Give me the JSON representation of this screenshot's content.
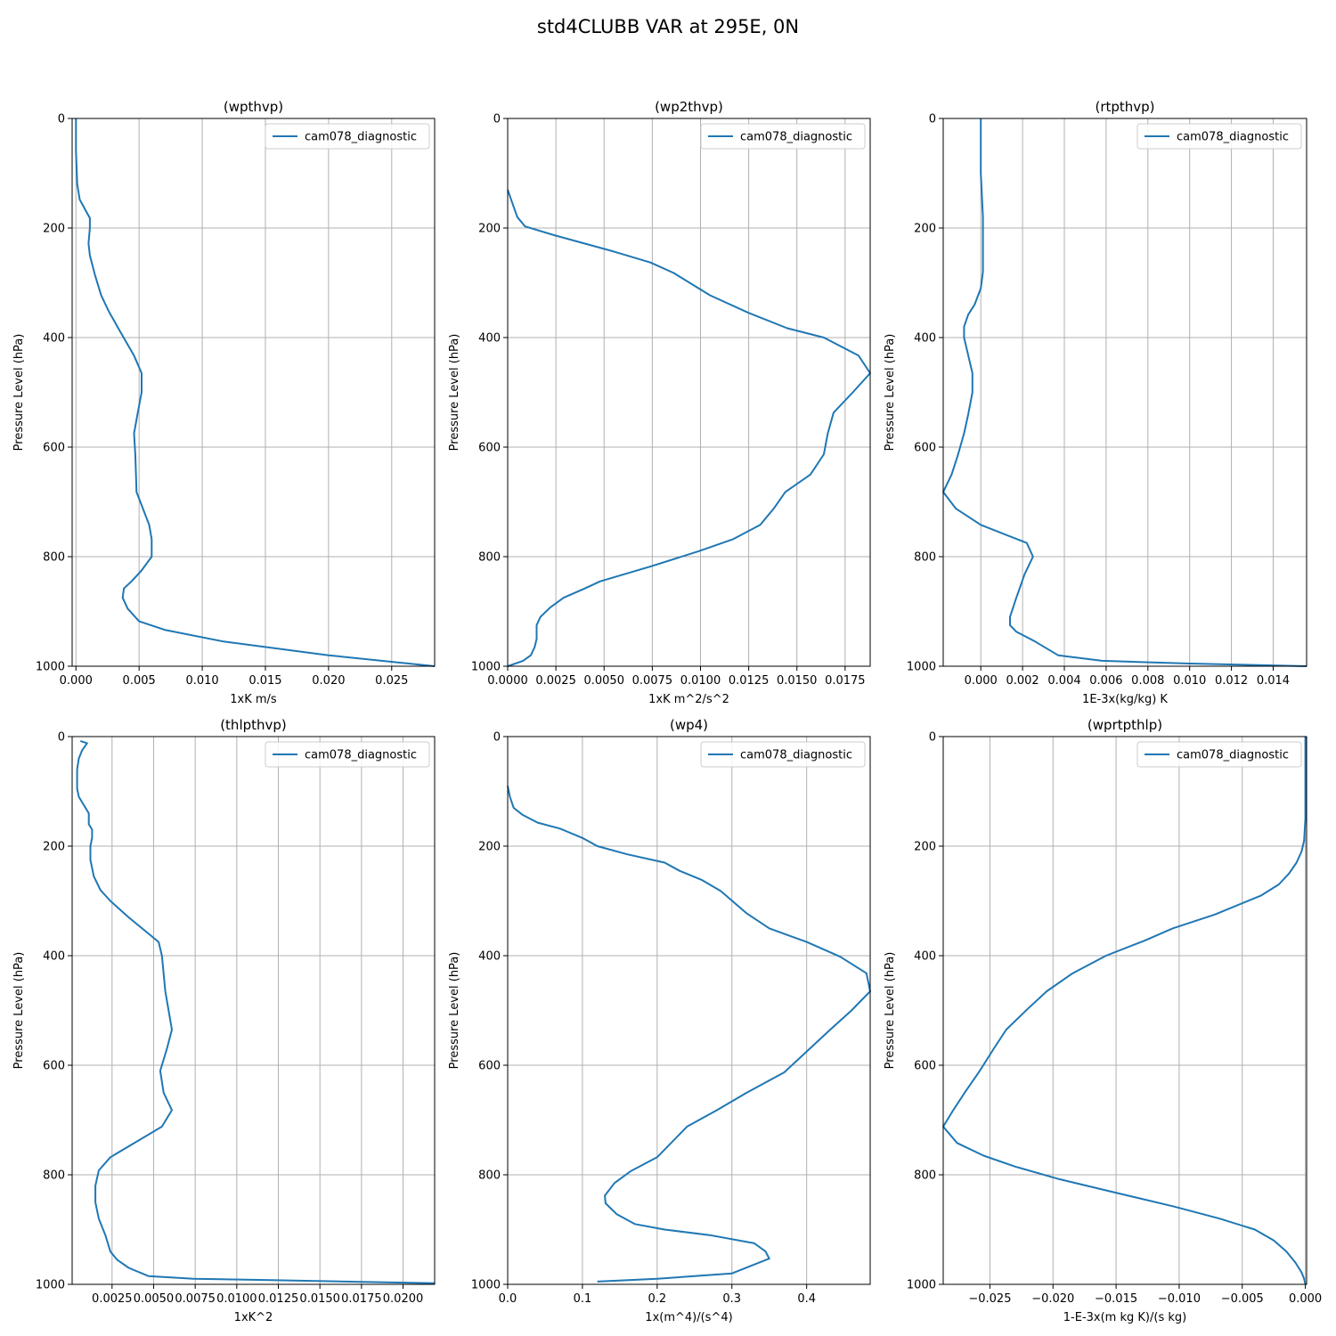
{
  "figure": {
    "title": "std4CLUBB VAR at 295E, 0N"
  },
  "colors": {
    "series": "#1f77b4",
    "grid": "#b0b0b0",
    "axis": "#000000"
  },
  "chart_data": [
    {
      "type": "line",
      "title": "(wpthvp)",
      "xlabel": "1xK m/s",
      "ylabel": "Pressure Level (hPa)",
      "xlim": [
        -0.0003,
        0.0284
      ],
      "ylim": [
        1000,
        0
      ],
      "xticks": [
        0.0,
        0.005,
        0.01,
        0.015,
        0.02,
        0.025
      ],
      "xtick_labels": [
        "0.000",
        "0.005",
        "0.010",
        "0.015",
        "0.020",
        "0.025"
      ],
      "yticks": [
        0,
        200,
        400,
        600,
        800,
        1000
      ],
      "ytick_labels": [
        "0",
        "200",
        "400",
        "600",
        "800",
        "1000"
      ],
      "grid": true,
      "legend_position": "top-right",
      "series": [
        {
          "name": "cam078_diagnostic",
          "x": [
            0,
            0,
            0.0001,
            0.0003,
            0.0007,
            0.0011,
            0.0011,
            0.001,
            0.0011,
            0.0015,
            0.002,
            0.0026,
            0.0034,
            0.0046,
            0.0052,
            0.0052,
            0.0049,
            0.0046,
            0.0047,
            0.0048,
            0.0058,
            0.006,
            0.006,
            0.0052,
            0.0044,
            0.0038,
            0.0037,
            0.0041,
            0.005,
            0.0071,
            0.0117,
            0.02,
            0.0284
          ],
          "y": [
            0,
            60,
            120,
            148,
            165,
            182,
            200,
            228,
            250,
            285,
            323,
            352,
            385,
            433,
            465,
            500,
            537,
            575,
            613,
            682,
            742,
            768,
            800,
            825,
            845,
            858,
            875,
            895,
            918,
            934,
            955,
            980,
            1000
          ]
        }
      ]
    },
    {
      "type": "line",
      "title": "(wp2thvp)",
      "xlabel": "1xK m^2/s^2",
      "ylabel": "Pressure Level (hPa)",
      "xlim": [
        0,
        0.0188
      ],
      "ylim": [
        1000,
        0
      ],
      "xticks": [
        0.0,
        0.0025,
        0.005,
        0.0075,
        0.01,
        0.0125,
        0.015,
        0.0175
      ],
      "xtick_labels": [
        "0.0000",
        "0.0025",
        "0.0050",
        "0.0075",
        "0.0100",
        "0.0125",
        "0.0150",
        "0.0175"
      ],
      "yticks": [
        0,
        200,
        400,
        600,
        800,
        1000
      ],
      "ytick_labels": [
        "0",
        "200",
        "400",
        "600",
        "800",
        "1000"
      ],
      "grid": true,
      "legend_position": "top-right",
      "series": [
        {
          "name": "cam078_diagnostic",
          "x": [
            0,
            0.0002,
            0.0005,
            0.0009,
            0.0024,
            0.0055,
            0.0074,
            0.0086,
            0.0105,
            0.0125,
            0.0145,
            0.0164,
            0.0182,
            0.0188,
            0.0179,
            0.0169,
            0.0166,
            0.0164,
            0.0157,
            0.0144,
            0.0138,
            0.0131,
            0.0117,
            0.0099,
            0.0074,
            0.0048,
            0.004,
            0.0029,
            0.0022,
            0.0017,
            0.0015,
            0.0015,
            0.0014,
            0.0012,
            0.0008,
            0
          ],
          "y": [
            130,
            150,
            180,
            197,
            213,
            243,
            263,
            282,
            323,
            355,
            383,
            400,
            433,
            465,
            500,
            537,
            575,
            613,
            650,
            682,
            712,
            742,
            768,
            790,
            818,
            845,
            858,
            875,
            893,
            910,
            925,
            950,
            965,
            980,
            990,
            1000
          ]
        }
      ]
    },
    {
      "type": "line",
      "title": "(rtpthvp)",
      "xlabel": "1E-3x(kg/kg) K",
      "ylabel": "Pressure Level (hPa)",
      "xlim": [
        -0.0018,
        0.0156
      ],
      "ylim": [
        1000,
        0
      ],
      "xticks": [
        0.0,
        0.002,
        0.004,
        0.006,
        0.008,
        0.01,
        0.012,
        0.014
      ],
      "xtick_labels": [
        "0.000",
        "0.002",
        "0.004",
        "0.006",
        "0.008",
        "0.010",
        "0.012",
        "0.014"
      ],
      "yticks": [
        0,
        200,
        400,
        600,
        800,
        1000
      ],
      "ytick_labels": [
        "0",
        "200",
        "400",
        "600",
        "800",
        "1000"
      ],
      "grid": true,
      "legend_position": "top-right",
      "series": [
        {
          "name": "cam078_diagnostic",
          "x": [
            0,
            0,
            0.0001,
            0.0001,
            0.0001,
            0.0001,
            0,
            -0.0003,
            -0.0006,
            -0.0008,
            -0.0008,
            -0.0004,
            -0.0004,
            -0.0006,
            -0.0008,
            -0.0011,
            -0.0014,
            -0.0018,
            -0.0012,
            0,
            0.0022,
            0.0025,
            0.0021,
            0.0017,
            0.0014,
            0.0014,
            0.0017,
            0.0026,
            0.0037,
            0.0058,
            0.0098,
            0.0156
          ],
          "y": [
            0,
            100,
            180,
            200,
            250,
            280,
            310,
            340,
            358,
            380,
            400,
            465,
            500,
            540,
            575,
            615,
            650,
            682,
            712,
            742,
            775,
            800,
            832,
            875,
            910,
            925,
            937,
            955,
            980,
            990,
            995,
            1000
          ]
        }
      ]
    },
    {
      "type": "line",
      "title": "(thlpthvp)",
      "xlabel": "1xK^2",
      "ylabel": "Pressure Level (hPa)",
      "xlim": [
        0.0001,
        0.0219
      ],
      "ylim": [
        1000,
        0
      ],
      "xticks": [
        0.0025,
        0.005,
        0.0075,
        0.01,
        0.0125,
        0.015,
        0.0175,
        0.02
      ],
      "xtick_labels": [
        "0.0025",
        "0.0050",
        "0.0075",
        "0.0100",
        "0.0125",
        "0.0150",
        "0.0175",
        "0.0200"
      ],
      "yticks": [
        0,
        200,
        400,
        600,
        800,
        1000
      ],
      "ytick_labels": [
        "0",
        "200",
        "400",
        "600",
        "800",
        "1000"
      ],
      "grid": true,
      "legend_position": "top-right",
      "series": [
        {
          "name": "cam078_diagnostic",
          "x": [
            0.0006,
            0.001,
            0.0007,
            0.0005,
            0.0004,
            0.0004,
            0.0004,
            0.0005,
            0.0008,
            0.0011,
            0.0011,
            0.0013,
            0.0013,
            0.0012,
            0.0012,
            0.0014,
            0.0018,
            0.0024,
            0.0035,
            0.0047,
            0.0053,
            0.0055,
            0.0057,
            0.0061,
            0.0058,
            0.0054,
            0.0056,
            0.0061,
            0.0055,
            0.0024,
            0.0017,
            0.0015,
            0.0015,
            0.0017,
            0.0021,
            0.0024,
            0.0028,
            0.0035,
            0.0047,
            0.0074,
            0.0117,
            0.0219
          ],
          "y": [
            8,
            12,
            25,
            40,
            60,
            75,
            95,
            110,
            125,
            140,
            160,
            170,
            185,
            200,
            225,
            255,
            280,
            300,
            330,
            360,
            375,
            400,
            465,
            535,
            570,
            610,
            650,
            682,
            712,
            768,
            792,
            820,
            850,
            880,
            910,
            940,
            955,
            970,
            985,
            990,
            992,
            998
          ]
        }
      ]
    },
    {
      "type": "line",
      "title": "(wp4)",
      "xlabel": "1x(m^4)/(s^4)",
      "ylabel": "Pressure Level (hPa)",
      "xlim": [
        0,
        0.485
      ],
      "ylim": [
        1000,
        0
      ],
      "xticks": [
        0.0,
        0.1,
        0.2,
        0.3,
        0.4
      ],
      "xtick_labels": [
        "0.0",
        "0.1",
        "0.2",
        "0.3",
        "0.4"
      ],
      "yticks": [
        0,
        200,
        400,
        600,
        800,
        1000
      ],
      "ytick_labels": [
        "0",
        "200",
        "400",
        "600",
        "800",
        "1000"
      ],
      "grid": true,
      "legend_position": "top-right",
      "series": [
        {
          "name": "cam078_diagnostic",
          "x": [
            0,
            0.003,
            0.008,
            0.02,
            0.04,
            0.07,
            0.1,
            0.12,
            0.16,
            0.21,
            0.23,
            0.26,
            0.285,
            0.32,
            0.35,
            0.4,
            0.445,
            0.48,
            0.485,
            0.46,
            0.43,
            0.4,
            0.37,
            0.32,
            0.28,
            0.24,
            0.2,
            0.165,
            0.143,
            0.13,
            0.131,
            0.146,
            0.17,
            0.21,
            0.27,
            0.33,
            0.345,
            0.35,
            0.3,
            0.2,
            0.12
          ],
          "y": [
            90,
            110,
            130,
            143,
            157,
            168,
            185,
            200,
            215,
            230,
            245,
            262,
            282,
            323,
            350,
            375,
            402,
            432,
            465,
            500,
            537,
            575,
            613,
            650,
            682,
            712,
            768,
            793,
            815,
            838,
            852,
            872,
            890,
            900,
            910,
            925,
            940,
            953,
            980,
            990,
            995
          ]
        }
      ]
    },
    {
      "type": "line",
      "title": "(wprtpthlp)",
      "xlabel": "1-E-3x(m kg K)/(s kg)",
      "ylabel": "Pressure Level (hPa)",
      "xlim": [
        -0.0287,
        0.0001
      ],
      "ylim": [
        1000,
        0
      ],
      "xticks": [
        -0.025,
        -0.02,
        -0.015,
        -0.01,
        -0.005,
        0.0
      ],
      "xtick_labels": [
        "−0.025",
        "−0.020",
        "−0.015",
        "−0.010",
        "−0.005",
        "0.000"
      ],
      "yticks": [
        0,
        200,
        400,
        600,
        800,
        1000
      ],
      "ytick_labels": [
        "0",
        "200",
        "400",
        "600",
        "800",
        "1000"
      ],
      "grid": true,
      "legend_position": "top-right",
      "series": [
        {
          "name": "cam078_diagnostic",
          "x": [
            0,
            0,
            -0.0001,
            -0.0003,
            -0.0007,
            -0.0013,
            -0.0021,
            -0.0035,
            -0.0072,
            -0.0105,
            -0.0128,
            -0.0158,
            -0.0185,
            -0.0205,
            -0.022,
            -0.0237,
            -0.0247,
            -0.0258,
            -0.027,
            -0.0279,
            -0.0287,
            -0.0276,
            -0.0255,
            -0.023,
            -0.0195,
            -0.0155,
            -0.0104,
            -0.0068,
            -0.004,
            -0.0025,
            -0.0015,
            -0.0008,
            -0.0003,
            -0.0001,
            0
          ],
          "y": [
            0,
            150,
            190,
            210,
            230,
            250,
            270,
            290,
            325,
            350,
            373,
            400,
            433,
            465,
            497,
            535,
            570,
            610,
            650,
            682,
            712,
            742,
            765,
            785,
            808,
            830,
            858,
            880,
            900,
            920,
            940,
            960,
            978,
            990,
            1000
          ]
        }
      ]
    }
  ]
}
